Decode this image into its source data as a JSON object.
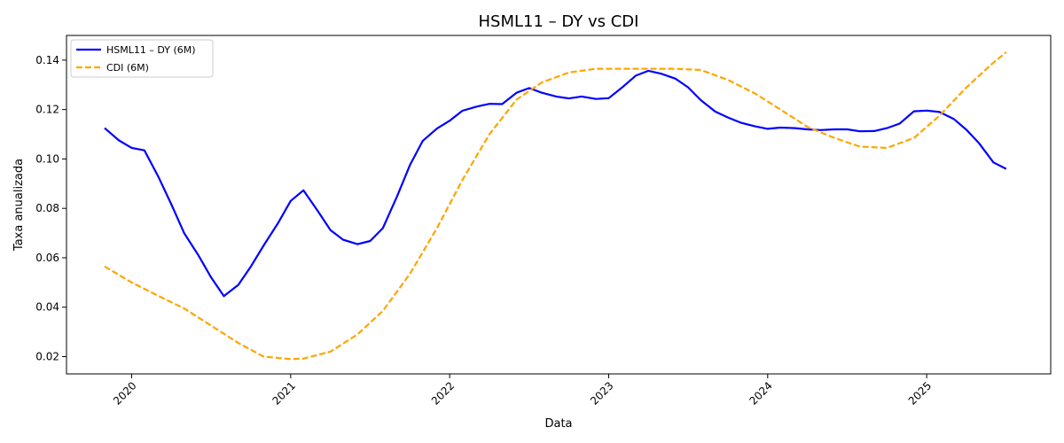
{
  "chart_data": {
    "type": "line",
    "title": "HSML11 – DY vs CDI",
    "xlabel": "Data",
    "ylabel": "Taxa anualizada",
    "xlim": [
      2019.59,
      2025.78
    ],
    "ylim": [
      0.013,
      0.15
    ],
    "x_ticks": [
      2020,
      2021,
      2022,
      2023,
      2024,
      2025
    ],
    "x_tick_labels": [
      "2020",
      "2021",
      "2022",
      "2023",
      "2024",
      "2025"
    ],
    "y_ticks": [
      0.02,
      0.04,
      0.06,
      0.08,
      0.1,
      0.12,
      0.14
    ],
    "y_tick_labels": [
      "0.02",
      "0.04",
      "0.06",
      "0.08",
      "0.10",
      "0.12",
      "0.14"
    ],
    "grid": false,
    "legend_position": "top-left",
    "series": [
      {
        "name": "HSML11 – DY (6M)",
        "color": "#0000ff",
        "dash": "solid",
        "x": [
          2019.83,
          2019.92,
          2020.0,
          2020.08,
          2020.17,
          2020.25,
          2020.33,
          2020.42,
          2020.5,
          2020.58,
          2020.67,
          2020.75,
          2020.83,
          2020.92,
          2021.0,
          2021.08,
          2021.17,
          2021.25,
          2021.33,
          2021.42,
          2021.5,
          2021.58,
          2021.67,
          2021.75,
          2021.83,
          2021.92,
          2022.0,
          2022.08,
          2022.17,
          2022.25,
          2022.33,
          2022.42,
          2022.5,
          2022.58,
          2022.67,
          2022.75,
          2022.83,
          2022.92,
          2023.0,
          2023.08,
          2023.17,
          2023.25,
          2023.33,
          2023.42,
          2023.5,
          2023.58,
          2023.67,
          2023.75,
          2023.83,
          2023.92,
          2024.0,
          2024.08,
          2024.17,
          2024.25,
          2024.33,
          2024.42,
          2024.5,
          2024.58,
          2024.67,
          2024.75,
          2024.83,
          2024.92,
          2025.0,
          2025.08,
          2025.17,
          2025.25,
          2025.33,
          2025.42,
          2025.5
        ],
        "y": [
          0.1125,
          0.1075,
          0.1045,
          0.1035,
          0.0925,
          0.0815,
          0.07,
          0.061,
          0.052,
          0.0445,
          0.049,
          0.0565,
          0.065,
          0.074,
          0.083,
          0.0873,
          0.079,
          0.0712,
          0.0673,
          0.0655,
          0.0668,
          0.072,
          0.085,
          0.0975,
          0.1073,
          0.1123,
          0.1155,
          0.1195,
          0.1212,
          0.1223,
          0.1222,
          0.1268,
          0.1287,
          0.1268,
          0.1253,
          0.1245,
          0.1253,
          0.1243,
          0.1246,
          0.1287,
          0.1337,
          0.1357,
          0.1345,
          0.1325,
          0.129,
          0.1238,
          0.1192,
          0.1168,
          0.1147,
          0.1132,
          0.1122,
          0.1127,
          0.1125,
          0.112,
          0.1117,
          0.112,
          0.112,
          0.1112,
          0.1113,
          0.1125,
          0.1143,
          0.1193,
          0.1196,
          0.119,
          0.1162,
          0.1118,
          0.1063,
          0.0986,
          0.096
        ]
      },
      {
        "name": "CDI (6M)",
        "color": "#ffa500",
        "dash": "dashed",
        "x": [
          2019.83,
          2020.0,
          2020.17,
          2020.33,
          2020.5,
          2020.67,
          2020.83,
          2021.0,
          2021.08,
          2021.25,
          2021.42,
          2021.58,
          2021.75,
          2021.92,
          2022.08,
          2022.25,
          2022.42,
          2022.58,
          2022.75,
          2022.92,
          2023.08,
          2023.25,
          2023.42,
          2023.58,
          2023.75,
          2023.92,
          2024.08,
          2024.25,
          2024.42,
          2024.58,
          2024.75,
          2024.92,
          2025.08,
          2025.25,
          2025.42,
          2025.5
        ],
        "y": [
          0.0565,
          0.05,
          0.0445,
          0.0395,
          0.0325,
          0.0255,
          0.02,
          0.019,
          0.0192,
          0.022,
          0.029,
          0.0385,
          0.0535,
          0.072,
          0.0915,
          0.11,
          0.124,
          0.131,
          0.135,
          0.1365,
          0.1365,
          0.1365,
          0.1365,
          0.136,
          0.132,
          0.1265,
          0.12,
          0.113,
          0.1085,
          0.105,
          0.1045,
          0.1085,
          0.1175,
          0.129,
          0.139,
          0.1432
        ]
      }
    ]
  }
}
